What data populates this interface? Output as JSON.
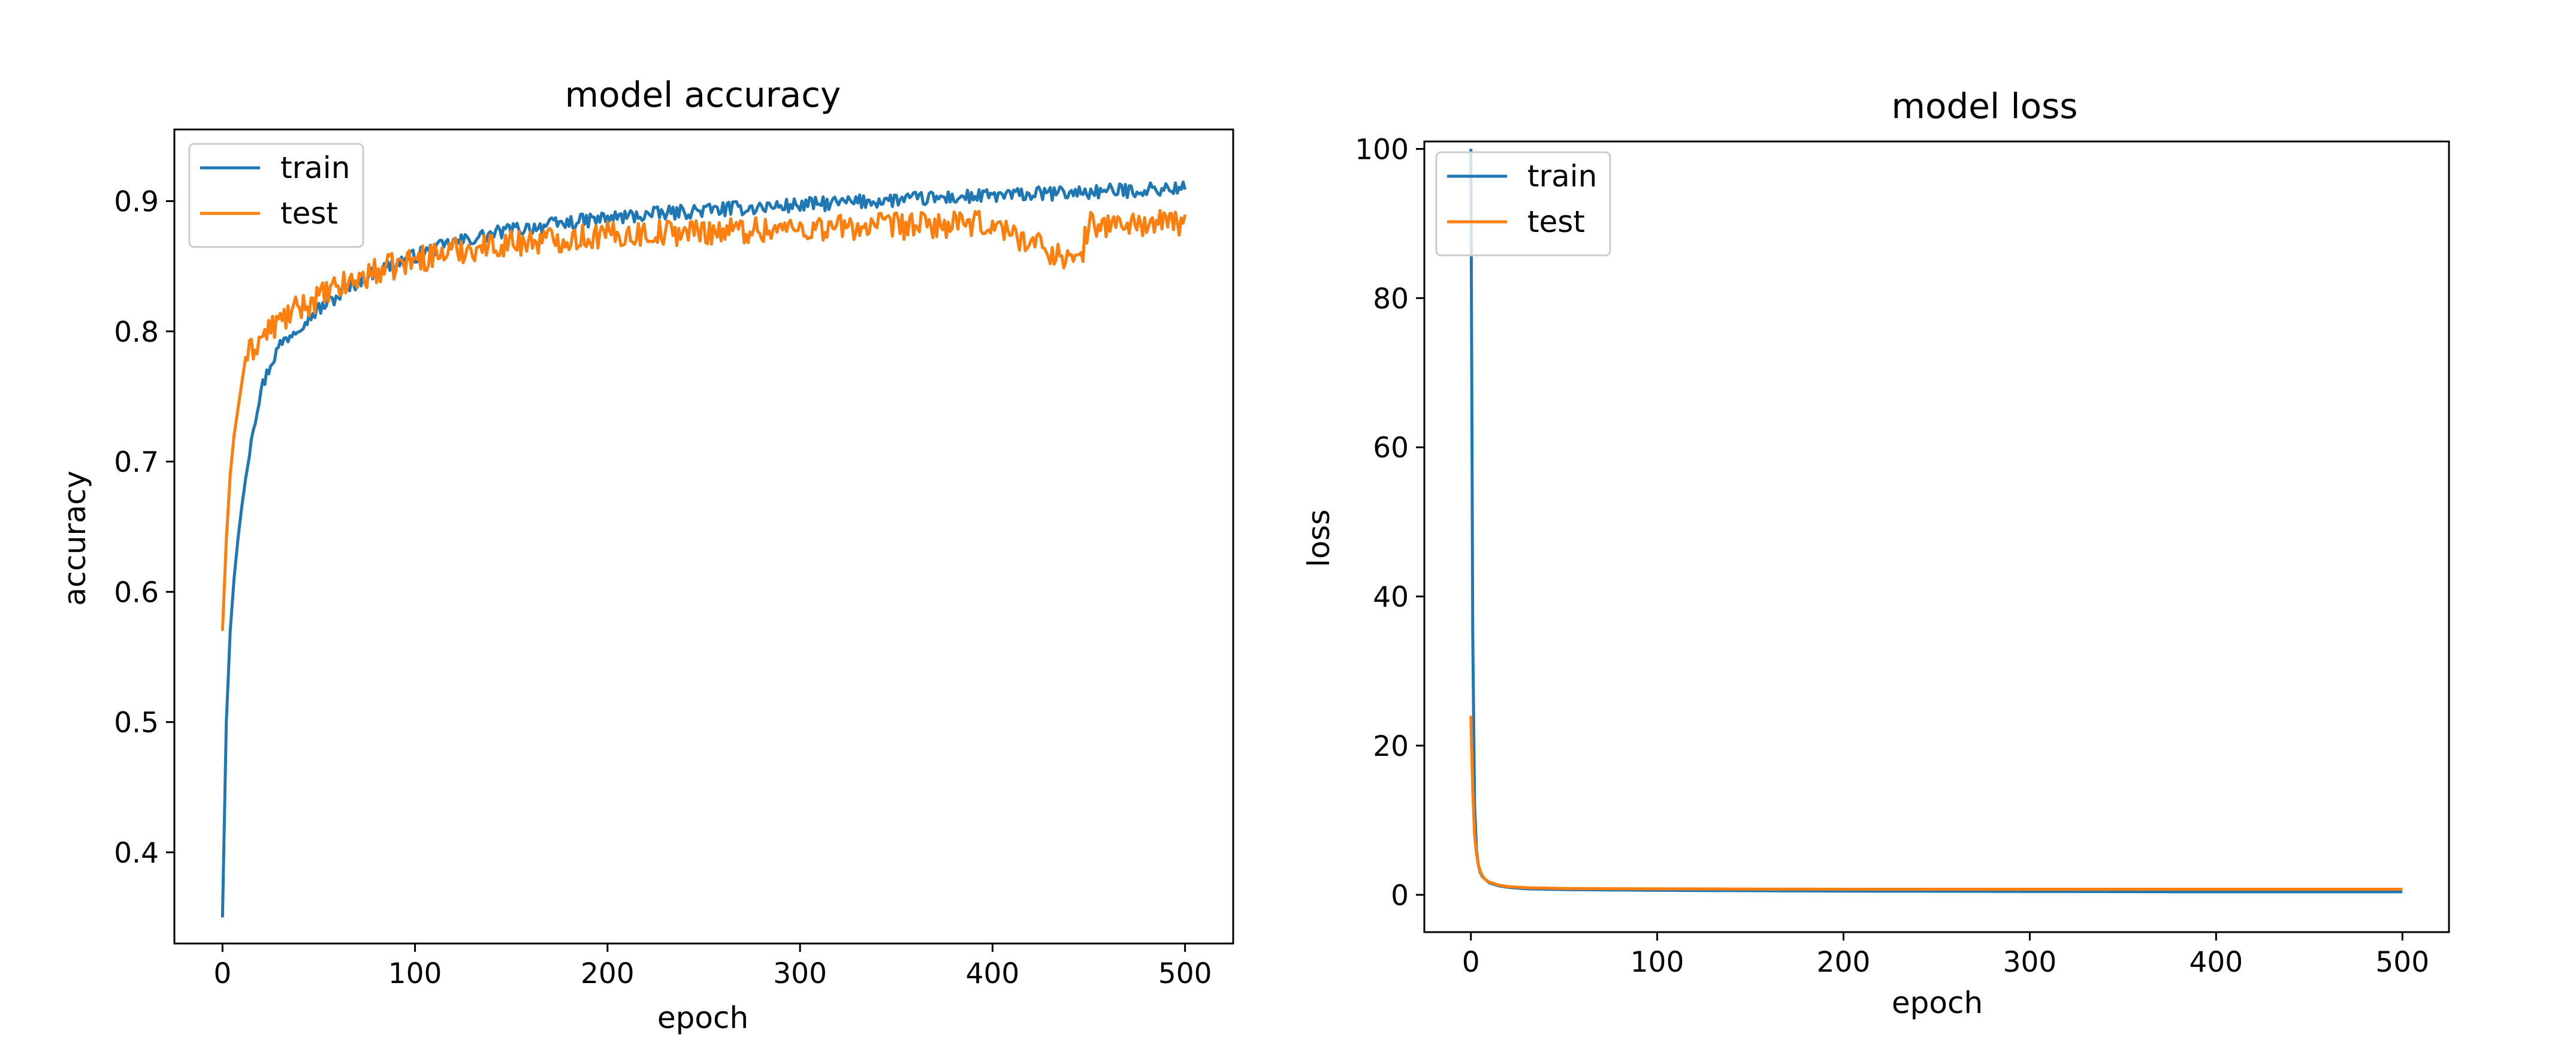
{
  "chart_data": [
    {
      "type": "line",
      "title": "model accuracy",
      "xlabel": "epoch",
      "ylabel": "accuracy",
      "xlim": [
        -25,
        525
      ],
      "ylim": [
        0.33,
        0.955
      ],
      "xticks": [
        0,
        100,
        200,
        300,
        400,
        500
      ],
      "xtick_labels": [
        "0",
        "100",
        "200",
        "300",
        "400",
        "500"
      ],
      "yticks": [
        0.4,
        0.5,
        0.6,
        0.7,
        0.8,
        0.9
      ],
      "ytick_labels": [
        "0.4",
        "0.5",
        "0.6",
        "0.7",
        "0.8",
        "0.9"
      ],
      "legend": {
        "position": "upper left",
        "entries": [
          "train",
          "test"
        ]
      },
      "grid": false,
      "series": [
        {
          "name": "train",
          "color": "#1f77b4",
          "x": [
            0,
            2,
            4,
            6,
            8,
            10,
            15,
            20,
            25,
            30,
            40,
            50,
            60,
            70,
            80,
            100,
            120,
            150,
            200,
            250,
            300,
            350,
            400,
            450,
            500
          ],
          "y": [
            0.35,
            0.5,
            0.57,
            0.61,
            0.64,
            0.665,
            0.72,
            0.755,
            0.775,
            0.79,
            0.805,
            0.817,
            0.827,
            0.838,
            0.846,
            0.858,
            0.868,
            0.878,
            0.887,
            0.893,
            0.897,
            0.901,
            0.904,
            0.907,
            0.91
          ]
        },
        {
          "name": "test",
          "color": "#ff7f0e",
          "x": [
            0,
            2,
            4,
            6,
            8,
            10,
            12,
            15,
            20,
            25,
            30,
            40,
            50,
            60,
            70,
            80,
            100,
            120,
            150,
            200,
            250,
            300,
            350,
            400,
            445,
            450,
            500
          ],
          "y": [
            0.57,
            0.64,
            0.69,
            0.72,
            0.74,
            0.76,
            0.78,
            0.785,
            0.795,
            0.802,
            0.808,
            0.818,
            0.826,
            0.833,
            0.84,
            0.846,
            0.855,
            0.862,
            0.868,
            0.874,
            0.877,
            0.879,
            0.881,
            0.882,
            0.852,
            0.882,
            0.883
          ]
        }
      ]
    },
    {
      "type": "line",
      "title": "model loss",
      "xlabel": "epoch",
      "ylabel": "loss",
      "xlim": [
        -25,
        525
      ],
      "ylim": [
        -5,
        101
      ],
      "xticks": [
        0,
        100,
        200,
        300,
        400,
        500
      ],
      "xtick_labels": [
        "0",
        "100",
        "200",
        "300",
        "400",
        "500"
      ],
      "yticks": [
        0,
        20,
        40,
        60,
        80,
        100
      ],
      "ytick_labels": [
        "0",
        "20",
        "40",
        "60",
        "80",
        "100"
      ],
      "legend": {
        "position": "upper left",
        "entries": [
          "train",
          "test"
        ]
      },
      "grid": false,
      "series": [
        {
          "name": "train",
          "color": "#1f77b4",
          "x": [
            0,
            1,
            2,
            3,
            4,
            5,
            6,
            8,
            10,
            15,
            20,
            30,
            50,
            100,
            200,
            300,
            400,
            500
          ],
          "y": [
            100,
            35,
            12,
            6,
            4,
            3,
            2.5,
            2,
            1.6,
            1.2,
            1.0,
            0.8,
            0.7,
            0.6,
            0.5,
            0.45,
            0.4,
            0.4
          ]
        },
        {
          "name": "test",
          "color": "#ff7f0e",
          "x": [
            0,
            1,
            2,
            3,
            4,
            5,
            6,
            8,
            10,
            15,
            20,
            30,
            50,
            100,
            200,
            300,
            400,
            500
          ],
          "y": [
            24,
            14,
            8,
            5.5,
            4,
            3.2,
            2.6,
            2.0,
            1.7,
            1.3,
            1.1,
            0.95,
            0.85,
            0.8,
            0.75,
            0.75,
            0.75,
            0.75
          ]
        }
      ]
    }
  ]
}
